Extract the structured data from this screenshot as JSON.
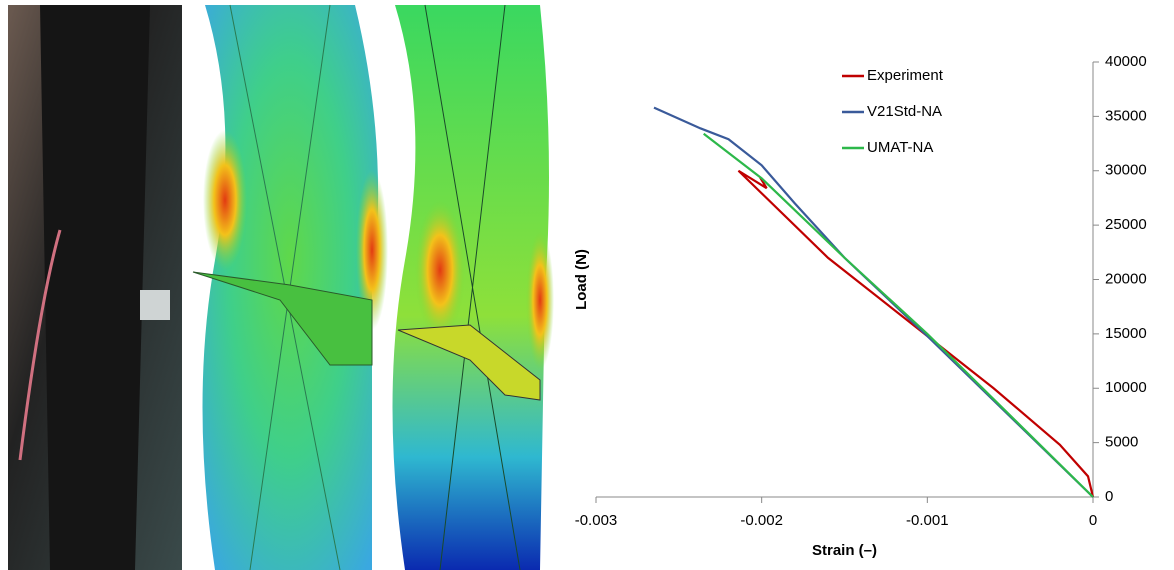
{
  "chart_data": {
    "type": "line",
    "xlabel": "Strain (–)",
    "ylabel": "Load (N)",
    "xlim": [
      -0.003,
      0
    ],
    "xticks": [
      -0.003,
      -0.002,
      -0.001,
      0
    ],
    "ylim": [
      0,
      40000
    ],
    "yticks": [
      0,
      5000,
      10000,
      15000,
      20000,
      25000,
      30000,
      35000,
      40000
    ],
    "grid": false,
    "legend": "upper center",
    "series": [
      {
        "name": "Experiment",
        "color": "#c00000",
        "x": [
          0,
          -3e-05,
          -0.0002,
          -0.0006,
          -0.0011,
          -0.0016,
          -0.00214,
          -0.00197,
          -0.00201
        ],
        "values": [
          0,
          1900,
          4800,
          10000,
          16000,
          22000,
          30000,
          28400,
          29400
        ]
      },
      {
        "name": "V21Std-NA",
        "color": "#3a5a9a",
        "x": [
          0,
          -0.001,
          -0.0015,
          -0.0018,
          -0.002,
          -0.0022,
          -0.00237,
          -0.00265
        ],
        "values": [
          0,
          14800,
          22000,
          27000,
          30500,
          32900,
          33900,
          35800
        ]
      },
      {
        "name": "UMAT-NA",
        "color": "#2db84a",
        "x": [
          0,
          -0.001,
          -0.0015,
          -0.002,
          -0.00235
        ],
        "values": [
          0,
          15000,
          22000,
          29300,
          33400
        ]
      }
    ]
  }
}
